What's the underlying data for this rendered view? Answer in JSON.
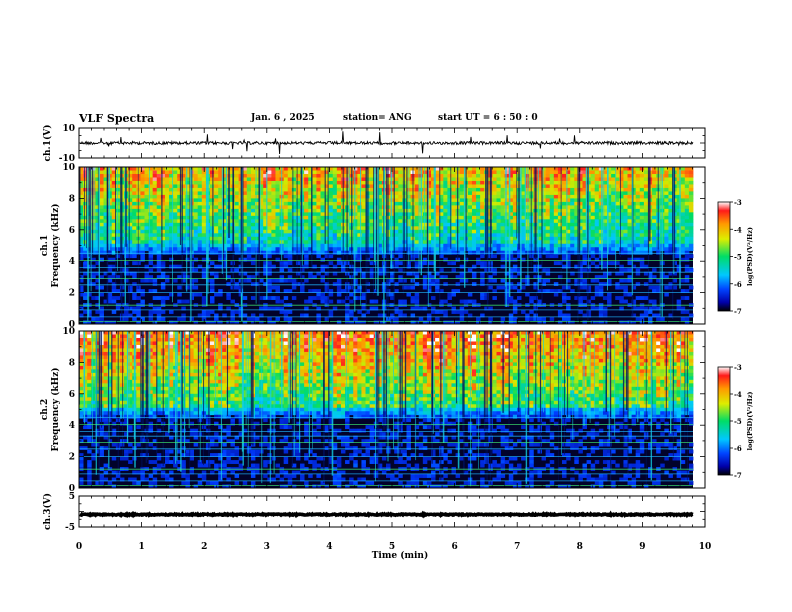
{
  "header": {
    "title": "VLF Spectra",
    "date": "Jan. 6 , 2025",
    "station": "station= ANG",
    "start": "start UT = 6 : 50 : 0"
  },
  "chart_data": [
    {
      "type": "line",
      "panel": "ch1-waveform",
      "ylabel": "ch.1(V)",
      "ylim": [
        -10,
        10
      ],
      "y_ticks": [
        "10",
        "-10"
      ],
      "baseline": 0
    },
    {
      "type": "heatmap",
      "panel": "ch1-spectrogram",
      "ylabel_top": "ch.1",
      "ylabel": "Frequency (kHz)",
      "ylim": [
        0,
        10
      ],
      "y_ticks": [
        "0",
        "2",
        "4",
        "6",
        "8",
        "10"
      ],
      "colorbar": {
        "label": "log(PSD)(V²/Hz)",
        "range": [
          -7,
          -3
        ],
        "ticks": [
          "-7",
          "-6",
          "-5",
          "-4",
          "-3"
        ]
      }
    },
    {
      "type": "heatmap",
      "panel": "ch2-spectrogram",
      "ylabel_top": "ch.2",
      "ylabel": "Frequency (kHz)",
      "ylim": [
        0,
        10
      ],
      "y_ticks": [
        "0",
        "2",
        "4",
        "6",
        "8",
        "10"
      ],
      "colorbar": {
        "label": "log(PSD)(V²/Hz)",
        "range": [
          -7,
          -3
        ],
        "ticks": [
          "-7",
          "-6",
          "-5",
          "-4",
          "-3"
        ]
      }
    },
    {
      "type": "line",
      "panel": "ch3-waveform",
      "ylabel": "ch.3(V)",
      "ylim": [
        -5,
        5
      ],
      "y_ticks": [
        "5",
        "-5"
      ],
      "baseline": -1
    }
  ],
  "x_axis": {
    "label": "Time (min)",
    "range": [
      0,
      10
    ],
    "ticks": [
      "0",
      "1",
      "2",
      "3",
      "4",
      "5",
      "6",
      "7",
      "8",
      "9",
      "10"
    ]
  }
}
